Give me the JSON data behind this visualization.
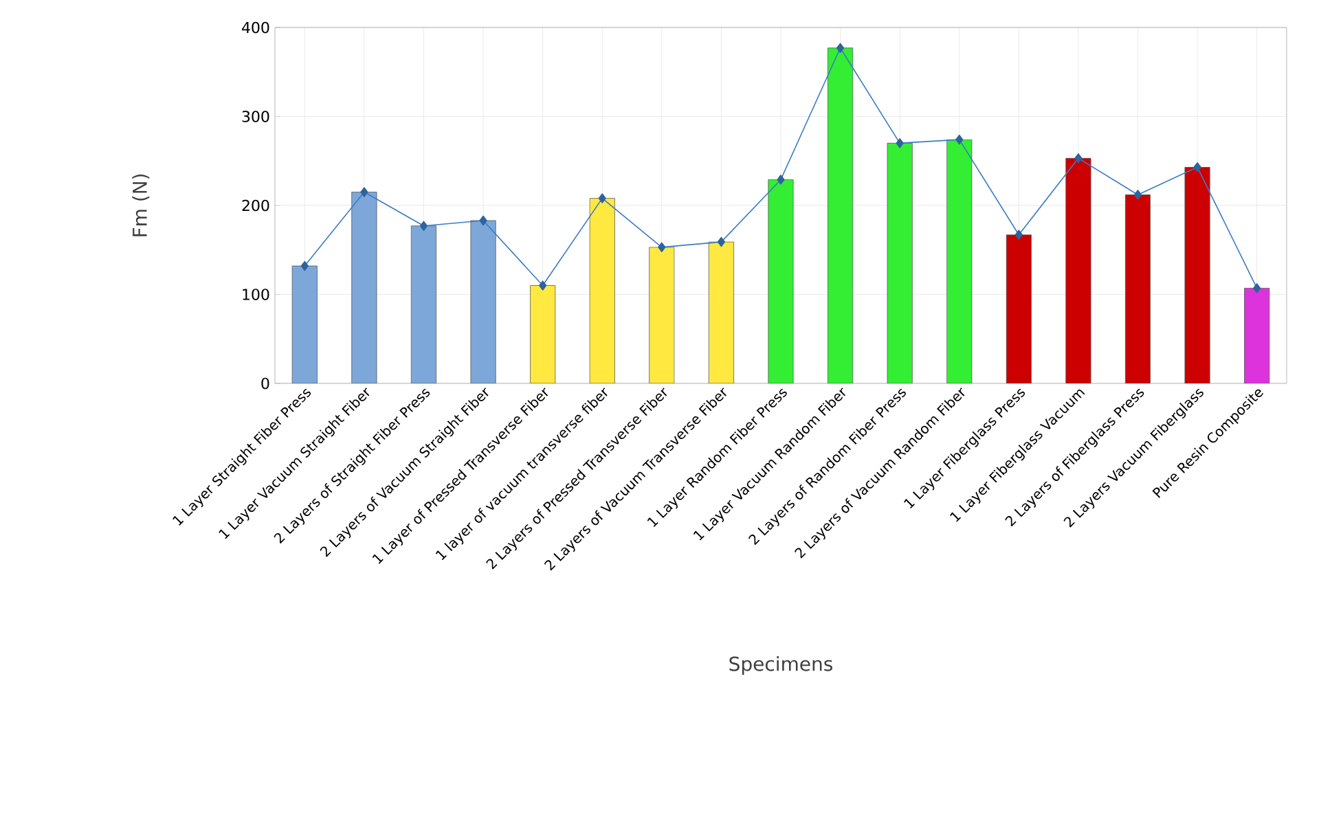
{
  "chart_data": {
    "type": "bar",
    "xlabel": "Specimens",
    "ylabel": "Fm (N)",
    "categories": [
      "1 Layer Straight Fiber Press",
      "1 Layer Vacuum Straight Fiber",
      "2 Layers of Straight Fiber Press",
      "2 Layers of Vacuum Straight Fiber",
      "1 Layer of Pressed Transverse Fiber",
      "1 layer of vacuum transverse fiber",
      "2 Layers of Pressed Transverse Fiber",
      "2 Layers of Vacuum Transverse Fiber",
      "1 Layer Random Fiber Press",
      "1 Layer Vacuum Random Fiber",
      "2 Layers of Random Fiber Press",
      "2 Layers of Vacuum Random Fiber",
      "1 Layer Fiberglass Press",
      "1 Layer Fiberglass Vacuum",
      "2 Layers of Fiberglass Press",
      "2 Layers Vacuum Fiberglass",
      "Pure Resin Composite"
    ],
    "series": [
      {
        "colors": [
          "#7da7d9",
          "#7da7d9",
          "#7da7d9",
          "#7da7d9",
          "#ffe840",
          "#ffe840",
          "#ffe840",
          "#ffe840",
          "#33ee33",
          "#33ee33",
          "#33ee33",
          "#33ee33",
          "#cc0000",
          "#cc0000",
          "#cc0000",
          "#cc0000",
          "#dd33dd"
        ],
        "values": [
          132,
          215,
          177,
          183,
          110,
          208,
          153,
          159,
          229,
          377,
          270,
          274,
          167,
          253,
          212,
          243,
          107
        ]
      },
      {
        "type": "line",
        "color": "#3a7cc4",
        "marker": "diamond",
        "values": [
          132,
          215,
          177,
          183,
          110,
          208,
          153,
          159,
          229,
          377,
          270,
          274,
          167,
          253,
          212,
          243,
          107
        ]
      }
    ],
    "ylim": [
      0,
      400
    ],
    "yticks": [
      0,
      100,
      200,
      300,
      400
    ],
    "grid": true
  }
}
